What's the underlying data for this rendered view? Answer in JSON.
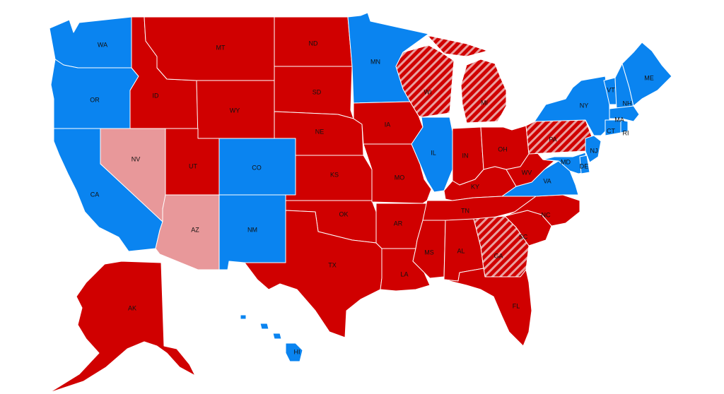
{
  "colors": {
    "dem": "#0a84f0",
    "rep": "#d00000",
    "rep_leaning": "#e8989a",
    "rep_flip_hatch": "#d00000",
    "hatch_stripe": "#e8a0a0"
  },
  "states": {
    "WA": {
      "label": "WA",
      "status": "dem"
    },
    "OR": {
      "label": "OR",
      "status": "dem"
    },
    "CA": {
      "label": "CA",
      "status": "dem"
    },
    "NV": {
      "label": "NV",
      "status": "rep_leaning"
    },
    "ID": {
      "label": "ID",
      "status": "rep"
    },
    "MT": {
      "label": "MT",
      "status": "rep"
    },
    "WY": {
      "label": "WY",
      "status": "rep"
    },
    "UT": {
      "label": "UT",
      "status": "rep"
    },
    "AZ": {
      "label": "AZ",
      "status": "rep_leaning"
    },
    "CO": {
      "label": "CO",
      "status": "dem"
    },
    "NM": {
      "label": "NM",
      "status": "dem"
    },
    "ND": {
      "label": "ND",
      "status": "rep"
    },
    "SD": {
      "label": "SD",
      "status": "rep"
    },
    "NE": {
      "label": "NE",
      "status": "rep"
    },
    "KS": {
      "label": "KS",
      "status": "rep"
    },
    "OK": {
      "label": "OK",
      "status": "rep"
    },
    "TX": {
      "label": "TX",
      "status": "rep"
    },
    "MN": {
      "label": "MN",
      "status": "dem"
    },
    "IA": {
      "label": "IA",
      "status": "rep"
    },
    "MO": {
      "label": "MO",
      "status": "rep"
    },
    "AR": {
      "label": "AR",
      "status": "rep"
    },
    "LA": {
      "label": "LA",
      "status": "rep"
    },
    "WI": {
      "label": "WI",
      "status": "rep_flip"
    },
    "IL": {
      "label": "IL",
      "status": "dem"
    },
    "MI": {
      "label": "MI",
      "status": "rep_flip"
    },
    "IN": {
      "label": "IN",
      "status": "rep"
    },
    "OH": {
      "label": "OH",
      "status": "rep"
    },
    "KY": {
      "label": "KY",
      "status": "rep"
    },
    "TN": {
      "label": "TN",
      "status": "rep"
    },
    "MS": {
      "label": "MS",
      "status": "rep"
    },
    "AL": {
      "label": "AL",
      "status": "rep"
    },
    "GA": {
      "label": "GA",
      "status": "rep_flip"
    },
    "FL": {
      "label": "FL",
      "status": "rep"
    },
    "SC": {
      "label": "SC",
      "status": "rep"
    },
    "NC": {
      "label": "NC",
      "status": "rep"
    },
    "VA": {
      "label": "VA",
      "status": "dem"
    },
    "WV": {
      "label": "WV",
      "status": "rep"
    },
    "PA": {
      "label": "PA",
      "status": "rep_flip"
    },
    "NY": {
      "label": "NY",
      "status": "dem"
    },
    "VT": {
      "label": "VT",
      "status": "dem"
    },
    "NH": {
      "label": "NH",
      "status": "dem"
    },
    "ME": {
      "label": "ME",
      "status": "dem"
    },
    "MA": {
      "label": "MA",
      "status": "dem"
    },
    "RI": {
      "label": "RI",
      "status": "dem"
    },
    "CT": {
      "label": "CT",
      "status": "dem"
    },
    "NJ": {
      "label": "NJ",
      "status": "dem"
    },
    "DE": {
      "label": "DE",
      "status": "dem"
    },
    "MD": {
      "label": "MD",
      "status": "dem"
    },
    "AK": {
      "label": "AK",
      "status": "rep"
    },
    "HI": {
      "label": "HI",
      "status": "dem"
    }
  }
}
